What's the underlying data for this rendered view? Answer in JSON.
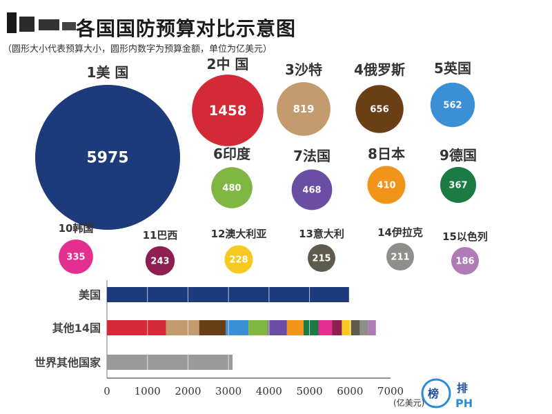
{
  "header": {
    "title": "各国国防预算对比示意图",
    "subtitle": "（圆形大小代表预算大小，圆形内数字为预算金额，单位为亿美元）"
  },
  "chart_data": [
    {
      "type": "bubble",
      "unit": "亿美元",
      "items": [
        {
          "rank": 1,
          "label": "1美 国",
          "value": 5975,
          "color": "#1d3a7a"
        },
        {
          "rank": 2,
          "label": "2中 国",
          "value": 1458,
          "color": "#d32a36"
        },
        {
          "rank": 3,
          "label": "3沙特",
          "value": 819,
          "color": "#c39b6e"
        },
        {
          "rank": 4,
          "label": "4俄罗斯",
          "value": 656,
          "color": "#6b3f16"
        },
        {
          "rank": 5,
          "label": "5英国",
          "value": 562,
          "color": "#3b8fd4"
        },
        {
          "rank": 6,
          "label": "6印度",
          "value": 480,
          "color": "#7fb742"
        },
        {
          "rank": 7,
          "label": "7法国",
          "value": 468,
          "color": "#6a4ea3"
        },
        {
          "rank": 8,
          "label": "8日本",
          "value": 410,
          "color": "#f2941c"
        },
        {
          "rank": 9,
          "label": "9德国",
          "value": 367,
          "color": "#1c7a44"
        },
        {
          "rank": 10,
          "label": "10韩国",
          "value": 335,
          "color": "#e32f8f"
        },
        {
          "rank": 11,
          "label": "11巴西",
          "value": 243,
          "color": "#8d1f52"
        },
        {
          "rank": 12,
          "label": "12澳大利亚",
          "value": 228,
          "color": "#f7c820"
        },
        {
          "rank": 13,
          "label": "13意大利",
          "value": 215,
          "color": "#5e5a4c"
        },
        {
          "rank": 14,
          "label": "14伊拉克",
          "value": 211,
          "color": "#8e8e8a"
        },
        {
          "rank": 15,
          "label": "15以色列",
          "value": 186,
          "color": "#b07ab7"
        }
      ]
    },
    {
      "type": "bar",
      "orientation": "horizontal",
      "stacked": true,
      "categories": [
        "美国",
        "其他14国",
        "世界其他国家"
      ],
      "xlim": [
        0,
        7000
      ],
      "xticks": [
        0,
        1000,
        2000,
        3000,
        4000,
        5000,
        6000,
        7000
      ],
      "xlabel": "(亿美元)",
      "rows": [
        {
          "category": "美国",
          "segments": [
            {
              "value": 5975,
              "color": "#1d3a7a"
            }
          ]
        },
        {
          "category": "其他14国",
          "segments": [
            {
              "value": 1458,
              "color": "#d32a36"
            },
            {
              "value": 819,
              "color": "#c39b6e"
            },
            {
              "value": 656,
              "color": "#6b3f16"
            },
            {
              "value": 562,
              "color": "#3b8fd4"
            },
            {
              "value": 480,
              "color": "#7fb742"
            },
            {
              "value": 468,
              "color": "#6a4ea3"
            },
            {
              "value": 410,
              "color": "#f2941c"
            },
            {
              "value": 367,
              "color": "#1c7a44"
            },
            {
              "value": 335,
              "color": "#e32f8f"
            },
            {
              "value": 243,
              "color": "#8d1f52"
            },
            {
              "value": 228,
              "color": "#f7c820"
            },
            {
              "value": 215,
              "color": "#5e5a4c"
            },
            {
              "value": 211,
              "color": "#8e8e8a"
            },
            {
              "value": 186,
              "color": "#b07ab7"
            }
          ]
        },
        {
          "category": "世界其他国家",
          "segments": [
            {
              "value": 3100,
              "color": "#9a9a9a"
            }
          ]
        }
      ]
    }
  ],
  "watermark": {
    "top": "榜",
    "bottom": "排"
  }
}
